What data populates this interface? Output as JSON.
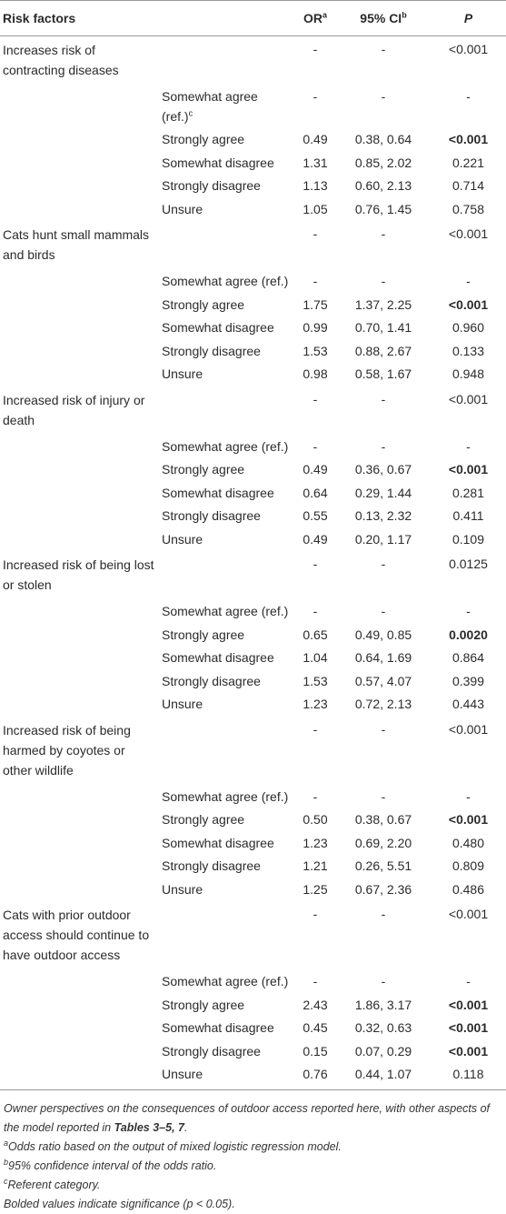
{
  "header": {
    "columns": [
      {
        "text": "Risk factors"
      },
      {
        "text": "OR",
        "sup": "a"
      },
      {
        "text": "95% CI",
        "sup": "b"
      },
      {
        "text": "P"
      }
    ]
  },
  "groups": [
    {
      "factor": "Increases risk of contracting diseases",
      "or": "-",
      "ci": "-",
      "p": "<0.001",
      "rows": [
        {
          "level": "Somewhat agree (ref.)",
          "sup": "c",
          "or": "-",
          "ci": "-",
          "p": "-"
        },
        {
          "level": "Strongly agree",
          "or": "0.49",
          "ci": "0.38, 0.64",
          "p": "<0.001",
          "bold": true
        },
        {
          "level": "Somewhat disagree",
          "or": "1.31",
          "ci": "0.85, 2.02",
          "p": "0.221"
        },
        {
          "level": "Strongly disagree",
          "or": "1.13",
          "ci": "0.60, 2.13",
          "p": "0.714"
        },
        {
          "level": "Unsure",
          "or": "1.05",
          "ci": "0.76, 1.45",
          "p": "0.758"
        }
      ]
    },
    {
      "factor": "Cats hunt small mammals and birds",
      "or": "-",
      "ci": "-",
      "p": "<0.001",
      "rows": [
        {
          "level": "Somewhat agree (ref.)",
          "or": "-",
          "ci": "-",
          "p": "-"
        },
        {
          "level": "Strongly agree",
          "or": "1.75",
          "ci": "1.37, 2.25",
          "p": "<0.001",
          "bold": true
        },
        {
          "level": "Somewhat disagree",
          "or": "0.99",
          "ci": "0.70, 1.41",
          "p": "0.960"
        },
        {
          "level": "Strongly disagree",
          "or": "1.53",
          "ci": "0.88, 2.67",
          "p": "0.133"
        },
        {
          "level": "Unsure",
          "or": "0.98",
          "ci": "0.58, 1.67",
          "p": "0.948"
        }
      ]
    },
    {
      "factor": "Increased risk of injury or death",
      "or": "-",
      "ci": "-",
      "p": "<0.001",
      "rows": [
        {
          "level": "Somewhat agree (ref.)",
          "or": "-",
          "ci": "-",
          "p": "-"
        },
        {
          "level": "Strongly agree",
          "or": "0.49",
          "ci": "0.36, 0.67",
          "p": "<0.001",
          "bold": true
        },
        {
          "level": "Somewhat disagree",
          "or": "0.64",
          "ci": "0.29, 1.44",
          "p": "0.281"
        },
        {
          "level": "Strongly disagree",
          "or": "0.55",
          "ci": "0.13, 2.32",
          "p": "0.411"
        },
        {
          "level": "Unsure",
          "or": "0.49",
          "ci": "0.20, 1.17",
          "p": "0.109"
        }
      ]
    },
    {
      "factor": "Increased risk of being lost or stolen",
      "or": "-",
      "ci": "-",
      "p": "0.0125",
      "rows": [
        {
          "level": "Somewhat agree (ref.)",
          "or": "-",
          "ci": "-",
          "p": "-"
        },
        {
          "level": "Strongly agree",
          "or": "0.65",
          "ci": "0.49, 0.85",
          "p": "0.0020",
          "bold": true
        },
        {
          "level": "Somewhat disagree",
          "or": "1.04",
          "ci": "0.64, 1.69",
          "p": "0.864"
        },
        {
          "level": "Strongly disagree",
          "or": "1.53",
          "ci": "0.57, 4.07",
          "p": "0.399"
        },
        {
          "level": "Unsure",
          "or": "1.23",
          "ci": "0.72, 2.13",
          "p": "0.443"
        }
      ]
    },
    {
      "factor": "Increased risk of being harmed by coyotes or other wildlife",
      "or": "-",
      "ci": "-",
      "p": "<0.001",
      "rows": [
        {
          "level": "Somewhat agree (ref.)",
          "or": "-",
          "ci": "-",
          "p": "-"
        },
        {
          "level": "Strongly agree",
          "or": "0.50",
          "ci": "0.38, 0.67",
          "p": "<0.001",
          "bold": true
        },
        {
          "level": "Somewhat disagree",
          "or": "1.23",
          "ci": "0.69, 2.20",
          "p": "0.480"
        },
        {
          "level": "Strongly disagree",
          "or": "1.21",
          "ci": "0.26, 5.51",
          "p": "0.809"
        },
        {
          "level": "Unsure",
          "or": "1.25",
          "ci": "0.67, 2.36",
          "p": "0.486"
        }
      ]
    },
    {
      "factor": "Cats with prior outdoor access should continue to have outdoor access",
      "or": "-",
      "ci": "-",
      "p": "<0.001",
      "rows": [
        {
          "level": "Somewhat agree (ref.)",
          "or": "-",
          "ci": "-",
          "p": "-"
        },
        {
          "level": "Strongly agree",
          "or": "2.43",
          "ci": "1.86, 3.17",
          "p": "<0.001",
          "bold": true
        },
        {
          "level": "Somewhat disagree",
          "or": "0.45",
          "ci": "0.32, 0.63",
          "p": "<0.001",
          "bold": true
        },
        {
          "level": "Strongly disagree",
          "or": "0.15",
          "ci": "0.07, 0.29",
          "p": "<0.001",
          "bold": true
        },
        {
          "level": "Unsure",
          "or": "0.76",
          "ci": "0.44, 1.07",
          "p": "0.118"
        }
      ]
    }
  ],
  "footnotes": [
    {
      "text": "Owner perspectives on the consequences of outdoor access reported here, with other aspects of the model reported in ",
      "bold": "Tables 3–5, 7",
      "tail": "."
    },
    {
      "sup": "a",
      "text": "Odds ratio based on the output of mixed logistic regression model."
    },
    {
      "sup": "b",
      "text": "95% confidence interval of the odds ratio."
    },
    {
      "sup": "c",
      "text": "Referent category."
    },
    {
      "text": "Bolded values indicate significance (p < 0.05)."
    }
  ]
}
